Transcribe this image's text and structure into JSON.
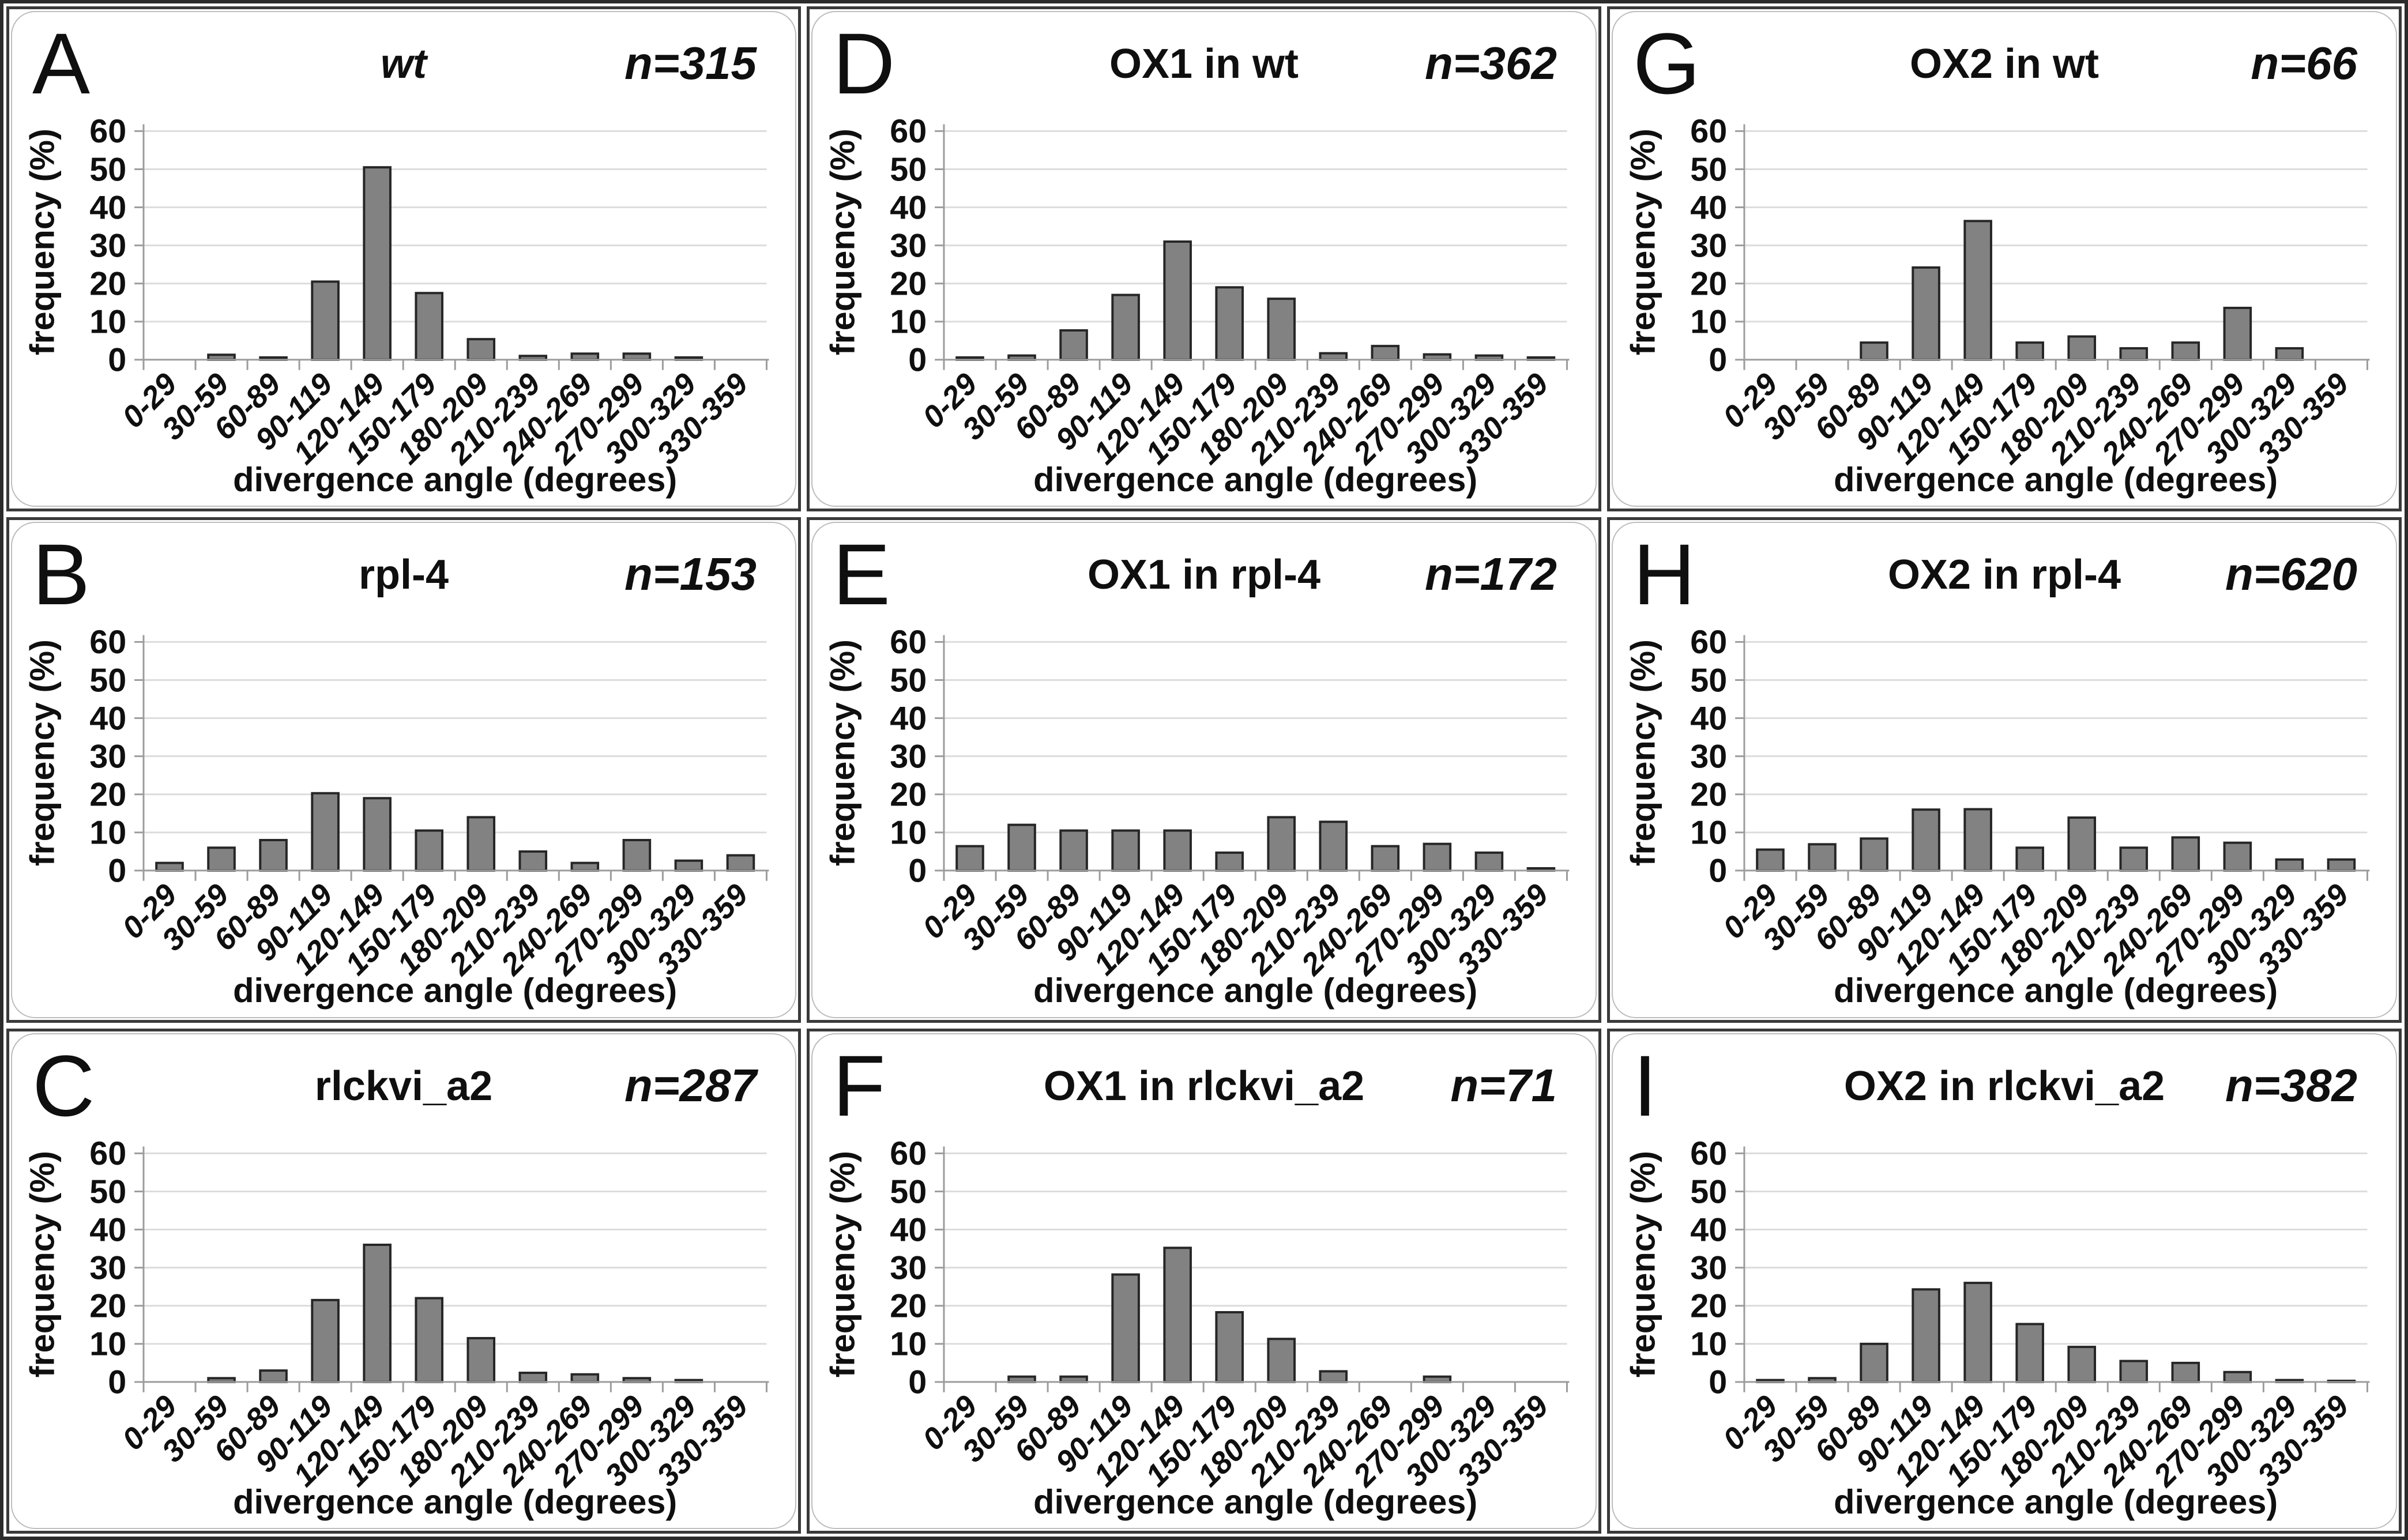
{
  "figure_title": "divergence angle distributions",
  "colors": {
    "bar_fill": "#828282",
    "bar_stroke": "#262626",
    "gridline": "#dcdcdc",
    "axis": "#9c9c9c",
    "text": "#0f0f0f",
    "panel_border": "#3a3a3a",
    "inner_round_border": "#bdbdbd"
  },
  "chart_data": {
    "type": "bar",
    "grid": true,
    "ylim": [
      0,
      60
    ],
    "yticks": [
      0,
      10,
      20,
      30,
      40,
      50,
      60
    ],
    "ylabel": "frequency (%)",
    "xlabel": "divergence angle (degrees)",
    "categories": [
      "0-29",
      "30-59",
      "60-89",
      "90-119",
      "120-149",
      "150-179",
      "180-209",
      "210-239",
      "240-269",
      "270-299",
      "300-329",
      "330-359"
    ],
    "panels": [
      {
        "letter": "A",
        "title": "wt",
        "title_italic": true,
        "n": 315,
        "n_label": "n=315",
        "values": [
          0,
          1.3,
          0.6,
          20.5,
          50.5,
          17.5,
          5.4,
          1,
          1.6,
          1.6,
          0.6,
          0
        ]
      },
      {
        "letter": "D",
        "title": "OX1 in wt",
        "title_italic": false,
        "n": 362,
        "n_label": "n=362",
        "values": [
          0.6,
          1.1,
          7.7,
          17,
          31,
          19,
          16,
          1.7,
          3.6,
          1.4,
          1.1,
          0.6
        ]
      },
      {
        "letter": "G",
        "title": "OX2 in wt",
        "title_italic": false,
        "n": 66,
        "n_label": "n=66",
        "values": [
          0,
          0,
          4.5,
          24.2,
          36.4,
          4.5,
          6.1,
          3,
          4.5,
          13.6,
          3,
          0
        ]
      },
      {
        "letter": "B",
        "title": "rpl-4",
        "title_italic": false,
        "n": 153,
        "n_label": "n=153",
        "values": [
          2,
          6,
          8,
          20.3,
          19,
          10.5,
          14,
          5,
          2,
          8,
          2.6,
          4
        ]
      },
      {
        "letter": "E",
        "title": "OX1 in rpl-4",
        "title_italic": false,
        "n": 172,
        "n_label": "n=172",
        "values": [
          6.4,
          12,
          10.5,
          10.5,
          10.5,
          4.7,
          14,
          12.8,
          6.4,
          7,
          4.7,
          0.6
        ]
      },
      {
        "letter": "H",
        "title": "OX2 in rpl-4",
        "title_italic": false,
        "n": 620,
        "n_label": "n=620",
        "values": [
          5.5,
          6.9,
          8.4,
          16,
          16.1,
          6,
          13.9,
          6,
          8.7,
          7.3,
          2.9,
          2.9
        ]
      },
      {
        "letter": "C",
        "title": "rlckvi_a2",
        "title_italic": false,
        "n": 287,
        "n_label": "n=287",
        "values": [
          0,
          1,
          3,
          21.5,
          36,
          22,
          11.5,
          2.4,
          2,
          1,
          0.5,
          0
        ]
      },
      {
        "letter": "F",
        "title": "OX1 in rlckvi_a2",
        "title_italic": false,
        "n": 71,
        "n_label": "n=71",
        "values": [
          0,
          1.4,
          1.4,
          28.2,
          35.2,
          18.3,
          11.3,
          2.8,
          0,
          1.4,
          0,
          0
        ]
      },
      {
        "letter": "I",
        "title": "OX2 in rlckvi_a2",
        "title_italic": false,
        "n": 382,
        "n_label": "n=382",
        "values": [
          0.5,
          1,
          10,
          24.3,
          26,
          15.2,
          9.2,
          5.5,
          5,
          2.6,
          0.5,
          0.3
        ]
      }
    ]
  }
}
